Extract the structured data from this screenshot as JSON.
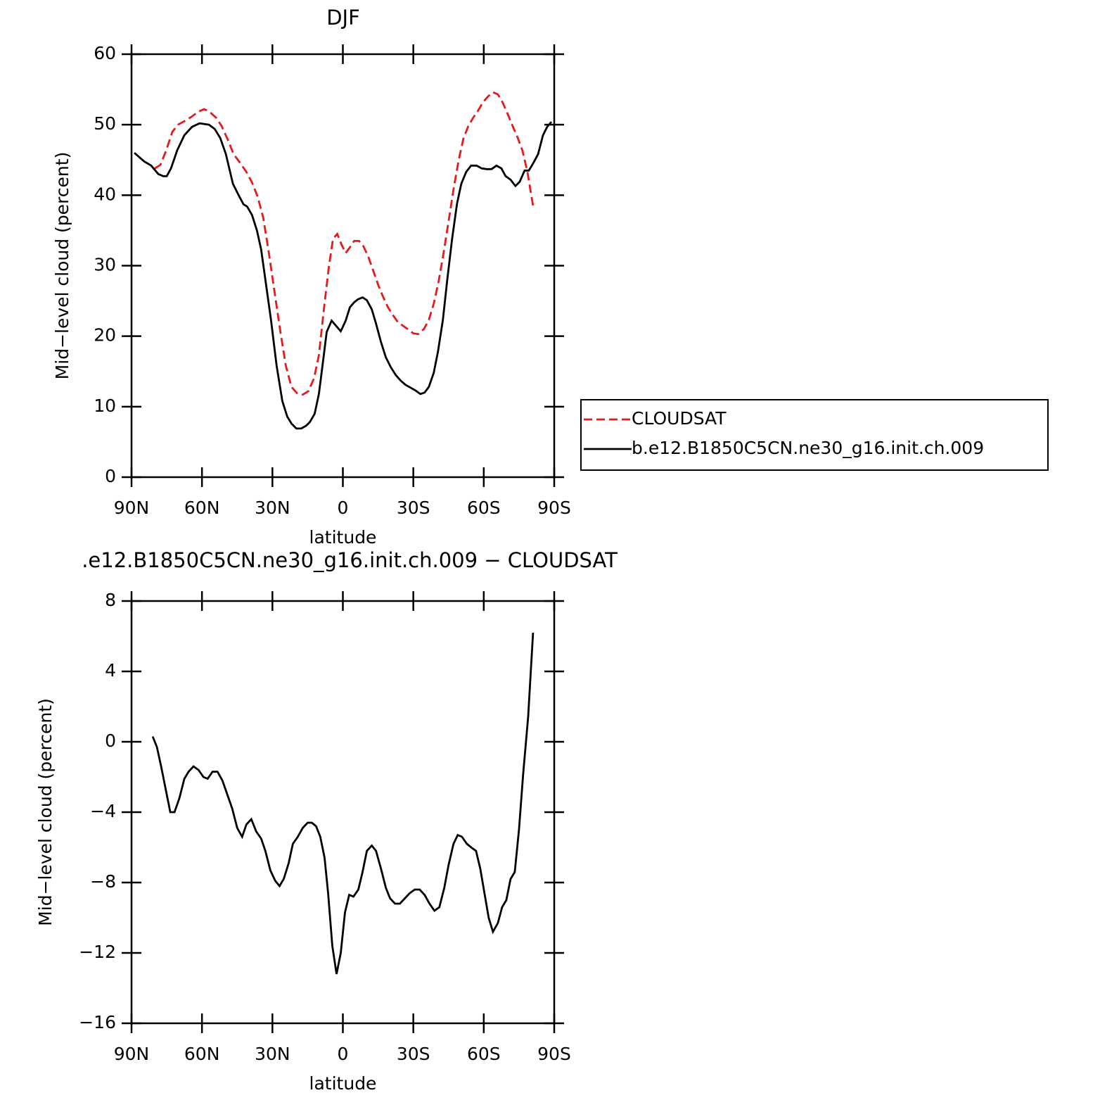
{
  "chart_data": [
    {
      "type": "line",
      "title": "DJF",
      "xlabel": "latitude",
      "ylabel": "Mid−level cloud (percent)",
      "xlim": [
        90,
        -90
      ],
      "xticks": [
        {
          "value": 90,
          "label": "90N"
        },
        {
          "value": 60,
          "label": "60N"
        },
        {
          "value": 30,
          "label": "30N"
        },
        0,
        {
          "value": -30,
          "label": "30S"
        },
        {
          "value": -60,
          "label": "60S"
        },
        {
          "value": -90,
          "label": "90S"
        }
      ],
      "ylim": [
        0,
        60
      ],
      "yticks": [
        0,
        10,
        20,
        30,
        40,
        50,
        60
      ],
      "legend": "right",
      "series": [
        {
          "name": "CLOUDSAT",
          "color": "#e41a1c",
          "dashed": true,
          "x": [
            80.1,
            77.7,
            75.3,
            72.6,
            70.2,
            67.5,
            64.5,
            61.8,
            59.1,
            56.7,
            54,
            51.6,
            48.9,
            46.5,
            43.8,
            41.1,
            38.7,
            36.3,
            33.9,
            31.5,
            29.1,
            26.7,
            24.3,
            21.9,
            19.5,
            17.1,
            14.7,
            12.3,
            10.2,
            8.1,
            6,
            4.2,
            2.4,
            0.6,
            -1.2,
            -3,
            -4.8,
            -6.9,
            -8.7,
            -10.8,
            -12.9,
            -15,
            -17.1,
            -19.2,
            -21.3,
            -23.4,
            -25.5,
            -27.6,
            -30,
            -32.1,
            -34.5,
            -36.6,
            -38.7,
            -40.8,
            -42.9,
            -45,
            -47.1,
            -49.2,
            -51.3,
            -53.4,
            -55.5,
            -57.6,
            -59.7,
            -61.8,
            -63.9,
            -66,
            -68.1,
            -70.2,
            -72.3,
            -74.4,
            -76.5,
            -78.6,
            -81
          ],
          "values": [
            43.8,
            44.3,
            46.3,
            49.0,
            50.0,
            50.5,
            51.1,
            51.8,
            52.2,
            51.8,
            51.0,
            49.8,
            47.8,
            45.8,
            44.6,
            43.3,
            41.8,
            39.8,
            36.8,
            31.8,
            26.3,
            20.8,
            15.8,
            12.8,
            11.9,
            11.7,
            12.2,
            14.0,
            17.3,
            23.8,
            29.8,
            33.8,
            34.5,
            33.0,
            31.8,
            32.6,
            33.5,
            33.5,
            32.8,
            31.3,
            29.3,
            27.3,
            25.6,
            24.1,
            23.0,
            22.0,
            21.5,
            21.0,
            20.4,
            20.3,
            21.0,
            22.3,
            24.6,
            27.8,
            31.8,
            36.3,
            40.8,
            44.8,
            48.0,
            49.8,
            51.0,
            52.0,
            53.2,
            54.0,
            54.6,
            54.3,
            53.1,
            51.5,
            49.8,
            48.2,
            46.3,
            43.3,
            38.5
          ]
        },
        {
          "name": "b.e12.B1850C5CN.ne30_g16.init.ch.009",
          "color": "#000000",
          "dashed": false,
          "x": [
            88.8,
            84.6,
            81.6,
            78.6,
            76.5,
            75,
            73.2,
            70.5,
            67.5,
            64.2,
            61,
            57,
            54.6,
            52.2,
            49.8,
            46.8,
            44.1,
            42.3,
            40.8,
            38.7,
            36.6,
            34.8,
            32.7,
            30.6,
            28.2,
            25.8,
            23.7,
            21.9,
            19.8,
            17.7,
            15.6,
            14.1,
            12,
            10.2,
            8.7,
            6.9,
            4.8,
            3,
            0.9,
            -1.2,
            -3,
            -4.8,
            -6.3,
            -8.4,
            -10.2,
            -12.3,
            -14.1,
            -16.2,
            -18.3,
            -20.4,
            -22.5,
            -24.6,
            -26.7,
            -28.8,
            -30.9,
            -33,
            -34.8,
            -36.6,
            -38.7,
            -40.5,
            -42.6,
            -44.4,
            -46.5,
            -48.6,
            -50.4,
            -52.5,
            -54.6,
            -57,
            -59.1,
            -61.2,
            -63.3,
            -65.4,
            -67.5,
            -69.3,
            -71.4,
            -73.5,
            -75.3,
            -77.4,
            -79.2,
            -81,
            -83.1,
            -85.2,
            -87,
            -88.8
          ],
          "values": [
            46.0,
            44.8,
            44.2,
            43.0,
            42.7,
            42.7,
            43.8,
            46.4,
            48.5,
            49.7,
            50.2,
            50.0,
            49.4,
            48.1,
            45.8,
            41.6,
            39.8,
            38.7,
            38.4,
            37.2,
            35.0,
            32.3,
            27.3,
            22.3,
            15.8,
            10.8,
            8.6,
            7.6,
            6.9,
            6.9,
            7.3,
            7.8,
            9.0,
            11.8,
            15.8,
            20.6,
            22.2,
            21.5,
            20.7,
            22.2,
            24.1,
            24.8,
            25.2,
            25.5,
            25.1,
            23.8,
            21.8,
            19.2,
            17.0,
            15.6,
            14.5,
            13.7,
            13.1,
            12.7,
            12.3,
            11.8,
            12.0,
            12.8,
            14.8,
            17.8,
            22.3,
            27.8,
            33.8,
            38.8,
            41.6,
            43.3,
            44.2,
            44.2,
            43.8,
            43.7,
            43.7,
            44.2,
            43.8,
            42.7,
            42.2,
            41.3,
            41.9,
            43.5,
            43.5,
            44.5,
            45.8,
            48.5,
            49.7,
            50.4
          ]
        }
      ]
    },
    {
      "type": "line",
      "title": ".e12.B1850C5CN.ne30_g16.init.ch.009 − CLOUDSAT",
      "xlabel": "latitude",
      "ylabel": "Mid−level cloud (percent)",
      "xlim": [
        90,
        -90
      ],
      "xticks": [
        {
          "value": 90,
          "label": "90N"
        },
        {
          "value": 60,
          "label": "60N"
        },
        {
          "value": 30,
          "label": "30N"
        },
        0,
        {
          "value": -30,
          "label": "30S"
        },
        {
          "value": -60,
          "label": "60S"
        },
        {
          "value": -90,
          "label": "90S"
        }
      ],
      "ylim": [
        -16,
        8
      ],
      "yticks": [
        {
          "value": -16,
          "label": "−16"
        },
        {
          "value": -12,
          "label": "−12"
        },
        {
          "value": -8,
          "label": "−8"
        },
        {
          "value": -4,
          "label": "−4"
        },
        0,
        4,
        8
      ],
      "series": [
        {
          "color": "#000000",
          "dashed": false,
          "x": [
            81,
            79.2,
            77.4,
            75,
            73.5,
            71.7,
            69.6,
            67.5,
            65.7,
            63.6,
            61.5,
            59.4,
            57.6,
            55.5,
            53.4,
            51.3,
            49.2,
            47.1,
            45,
            42.9,
            41.1,
            39,
            36.9,
            34.8,
            33,
            30.9,
            28.8,
            27,
            25.2,
            23.1,
            21.3,
            19.2,
            17.1,
            15,
            13.2,
            11.4,
            9.6,
            7.8,
            6.3,
            4.5,
            2.7,
            0.9,
            -0.9,
            -2.7,
            -4.5,
            -6.6,
            -8.4,
            -10.2,
            -12.3,
            -14.1,
            -16.2,
            -18.3,
            -20.1,
            -22.2,
            -24.3,
            -26.4,
            -28.5,
            -30.6,
            -32.7,
            -34.8,
            -36.9,
            -39,
            -41.1,
            -43.2,
            -45,
            -47.1,
            -48.9,
            -50.7,
            -52.8,
            -54.6,
            -56.7,
            -58.5,
            -60.3,
            -62.1,
            -63.9,
            -66,
            -67.8,
            -69.6,
            -71.4,
            -73.2,
            -75,
            -76.8,
            -78.9,
            -81
          ],
          "values": [
            0.3,
            -0.3,
            -1.4,
            -3.0,
            -4.0,
            -4.0,
            -3.2,
            -2.1,
            -1.7,
            -1.4,
            -1.6,
            -2.0,
            -2.1,
            -1.7,
            -1.7,
            -2.2,
            -3.0,
            -3.8,
            -4.9,
            -5.4,
            -4.7,
            -4.4,
            -5.1,
            -5.5,
            -6.2,
            -7.3,
            -7.9,
            -8.2,
            -7.8,
            -6.9,
            -5.8,
            -5.4,
            -4.9,
            -4.6,
            -4.6,
            -4.8,
            -5.4,
            -6.6,
            -8.6,
            -11.6,
            -13.2,
            -12.0,
            -9.7,
            -8.7,
            -8.8,
            -8.4,
            -7.4,
            -6.2,
            -5.9,
            -6.2,
            -7.2,
            -8.3,
            -8.9,
            -9.2,
            -9.2,
            -8.9,
            -8.6,
            -8.4,
            -8.4,
            -8.7,
            -9.2,
            -9.6,
            -9.4,
            -8.3,
            -7.0,
            -5.8,
            -5.3,
            -5.4,
            -5.8,
            -6.0,
            -6.2,
            -7.2,
            -8.6,
            -10.0,
            -10.8,
            -10.3,
            -9.4,
            -9.0,
            -7.8,
            -7.4,
            -5.0,
            -1.8,
            1.4,
            6.2
          ]
        }
      ]
    }
  ]
}
